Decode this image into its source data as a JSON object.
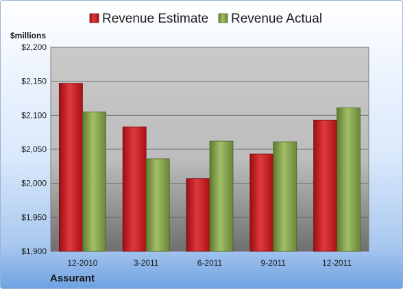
{
  "chart_data": {
    "type": "bar",
    "categories": [
      "12-2010",
      "3-2011",
      "6-2011",
      "9-2011",
      "12-2011"
    ],
    "series": [
      {
        "name": "Revenue Estimate",
        "values": [
          2147,
          2083,
          2007,
          2043,
          2093
        ]
      },
      {
        "name": "Revenue Actual",
        "values": [
          2105,
          2036,
          2062,
          2061,
          2111
        ]
      }
    ],
    "ylabel": "$millions",
    "ylim": [
      1900,
      2200
    ],
    "yticks": [
      1900,
      1950,
      2000,
      2050,
      2100,
      2150,
      2200
    ],
    "ytick_labels": [
      "$1,900",
      "$1,950",
      "$2,000",
      "$2,050",
      "$2,100",
      "$2,150",
      "$2,200"
    ],
    "grid": true,
    "legend_position": "top"
  },
  "company": "Assurant",
  "colors": {
    "estimate": "#c0181c",
    "actual": "#7f9c45"
  }
}
